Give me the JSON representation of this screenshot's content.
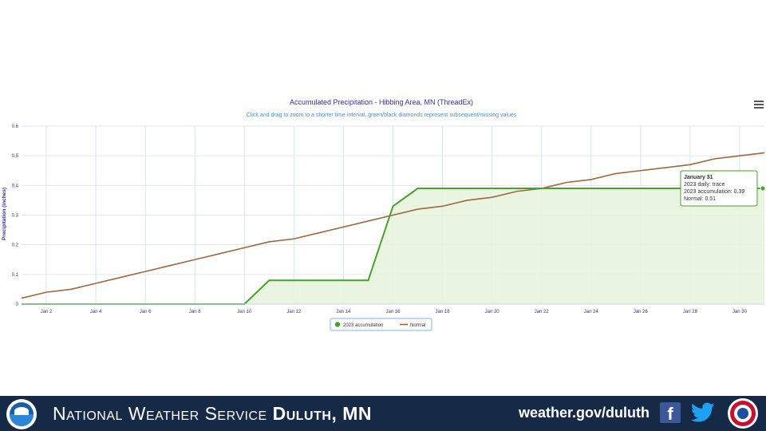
{
  "chart_data": {
    "type": "area",
    "title": "Accumulated Precipitation - Hibbing Area, MN (ThreadEx)",
    "subtitle": "Click and drag to zoom to a shorter time interval. green/black diamonds represent subsequent/missing values",
    "ylabel": "Precipitation (inches)",
    "xlabel": "",
    "xlim": [
      1,
      31
    ],
    "ylim": [
      0,
      0.6
    ],
    "grid": true,
    "x_ticks": [
      "Jan 2",
      "Jan 4",
      "Jan 6",
      "Jan 8",
      "Jan 10",
      "Jan 12",
      "Jan 14",
      "Jan 16",
      "Jan 18",
      "Jan 20",
      "Jan 22",
      "Jan 24",
      "Jan 26",
      "Jan 28",
      "Jan 30"
    ],
    "y_ticks": [
      "0",
      "0.1",
      "0.2",
      "0.3",
      "0.4",
      "0.5",
      "0.6"
    ],
    "y_tick_values": [
      0,
      0.1,
      0.2,
      0.3,
      0.4,
      0.5,
      0.6
    ],
    "x": [
      1,
      2,
      3,
      4,
      5,
      6,
      7,
      8,
      9,
      10,
      11,
      12,
      13,
      14,
      15,
      16,
      17,
      18,
      19,
      20,
      21,
      22,
      23,
      24,
      25,
      26,
      27,
      28,
      29,
      30,
      31
    ],
    "series": [
      {
        "name": "2023 accumulation",
        "color": "#4aa02c",
        "fill": "#e6f3dc",
        "values": [
          0,
          0,
          0,
          0,
          0,
          0,
          0,
          0,
          0,
          0,
          0.08,
          0.08,
          0.08,
          0.08,
          0.08,
          0.33,
          0.39,
          0.39,
          0.39,
          0.39,
          0.39,
          0.39,
          0.39,
          0.39,
          0.39,
          0.39,
          0.39,
          0.39,
          0.39,
          0.39,
          0.39
        ]
      },
      {
        "name": "Normal",
        "color": "#a0673f",
        "values": [
          0.02,
          0.04,
          0.05,
          0.07,
          0.09,
          0.11,
          0.13,
          0.15,
          0.17,
          0.19,
          0.21,
          0.22,
          0.24,
          0.26,
          0.28,
          0.3,
          0.32,
          0.33,
          0.35,
          0.36,
          0.38,
          0.39,
          0.41,
          0.42,
          0.44,
          0.45,
          0.46,
          0.47,
          0.49,
          0.5,
          0.51
        ]
      }
    ],
    "legend_position": "bottom-center",
    "tooltip": {
      "lines": [
        "January 31",
        "2023 daily: trace",
        "2023 accumulation: 0.39",
        "Normal: 0.51"
      ]
    }
  },
  "footer": {
    "title_prefix": "National Weather Service",
    "office": "Duluth, MN",
    "url": "weather.gov/duluth",
    "facebook_glyph": "f",
    "background": "#162a48"
  },
  "icons": {
    "menu": "hamburger-menu-icon",
    "noaa": "noaa-logo",
    "facebook": "facebook-icon",
    "twitter": "twitter-icon",
    "nws": "nws-logo"
  }
}
